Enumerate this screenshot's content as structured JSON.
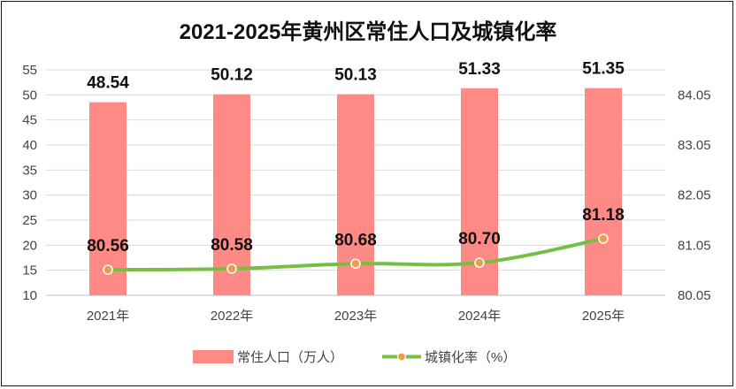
{
  "chart_data": {
    "type": "bar",
    "title": "2021-2025年黄州区常住人口及城镇化率",
    "categories": [
      "2021年",
      "2022年",
      "2023年",
      "2024年",
      "2025年"
    ],
    "series": [
      {
        "name": "常住人口（万人）",
        "type": "bar",
        "axis": "left",
        "color": "#fe8a85",
        "values": [
          48.54,
          50.12,
          50.13,
          51.33,
          51.35
        ],
        "labels": [
          "48.54",
          "50.12",
          "50.13",
          "51.33",
          "51.35"
        ]
      },
      {
        "name": "城镇化率（%）",
        "type": "line",
        "axis": "right",
        "color": "#77bf44",
        "marker_color": "#f09a4a",
        "values": [
          80.56,
          80.58,
          80.68,
          80.7,
          81.18
        ],
        "labels": [
          "80.56",
          "80.58",
          "80.68",
          "80.70",
          "81.18"
        ]
      }
    ],
    "y_left": {
      "lim": [
        10,
        55
      ],
      "ticks": [
        "10",
        "15",
        "20",
        "25",
        "30",
        "35",
        "40",
        "45",
        "50",
        "55"
      ]
    },
    "y_right": {
      "lim": [
        80.05,
        84.55
      ],
      "ticks": [
        "80.05",
        "81.05",
        "82.05",
        "83.05",
        "84.05"
      ]
    },
    "grid": true,
    "legend": "bottom"
  }
}
